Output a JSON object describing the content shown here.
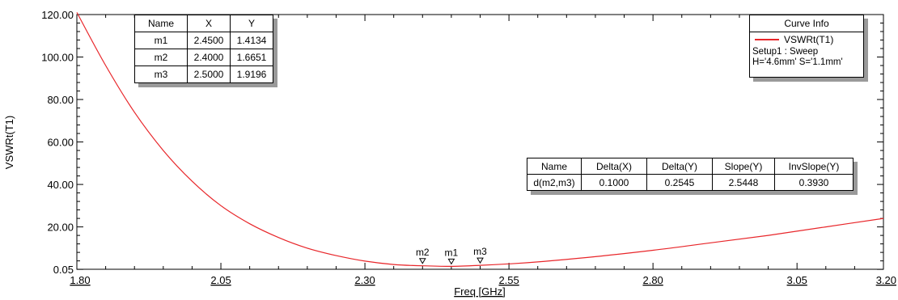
{
  "chart_data": {
    "type": "line",
    "xlabel": "Freq [GHz]",
    "ylabel": "VSWRt(T1)",
    "xlim": [
      1.8,
      3.2
    ],
    "ylim": [
      0.05,
      120.0
    ],
    "x_ticks": [
      "1.80",
      "2.05",
      "2.30",
      "2.55",
      "2.80",
      "3.05",
      "3.20"
    ],
    "y_ticks": [
      "0.05",
      "20.00",
      "40.00",
      "60.00",
      "80.00",
      "100.00",
      "120.00"
    ],
    "grid": false,
    "series": [
      {
        "name": "VSWRt(T1)",
        "color": "#e8262a",
        "x": [
          1.8,
          1.85,
          1.9,
          1.95,
          2.0,
          2.05,
          2.1,
          2.15,
          2.2,
          2.25,
          2.3,
          2.35,
          2.4,
          2.45,
          2.5,
          2.55,
          2.6,
          2.7,
          2.8,
          2.9,
          3.0,
          3.1,
          3.2
        ],
        "y": [
          121.0,
          96.0,
          74.0,
          56.0,
          41.5,
          30.0,
          21.5,
          15.0,
          10.0,
          6.5,
          3.9,
          2.3,
          1.67,
          1.41,
          1.92,
          2.6,
          3.5,
          6.0,
          9.0,
          12.5,
          16.0,
          20.0,
          24.0
        ]
      }
    ],
    "markers": [
      {
        "name": "m2",
        "x": 2.4,
        "y": 1.6651
      },
      {
        "name": "m1",
        "x": 2.45,
        "y": 1.4134
      },
      {
        "name": "m3",
        "x": 2.5,
        "y": 1.9196
      }
    ]
  },
  "marker_table": {
    "headers": [
      "Name",
      "X",
      "Y"
    ],
    "rows": [
      [
        "m1",
        "2.4500",
        "1.4134"
      ],
      [
        "m2",
        "2.4000",
        "1.6651"
      ],
      [
        "m3",
        "2.5000",
        "1.9196"
      ]
    ]
  },
  "delta_table": {
    "headers": [
      "Name",
      "Delta(X)",
      "Delta(Y)",
      "Slope(Y)",
      "InvSlope(Y)"
    ],
    "rows": [
      [
        "d(m2,m3)",
        "0.1000",
        "0.2545",
        "2.5448",
        "0.3930"
      ]
    ]
  },
  "curve_info": {
    "title": "Curve Info",
    "curve_name": "VSWRt(T1)",
    "line_color": "#e8262a",
    "setup": "Setup1 : Sweep",
    "params": "H='4.6mm' S='1.1mm'"
  }
}
